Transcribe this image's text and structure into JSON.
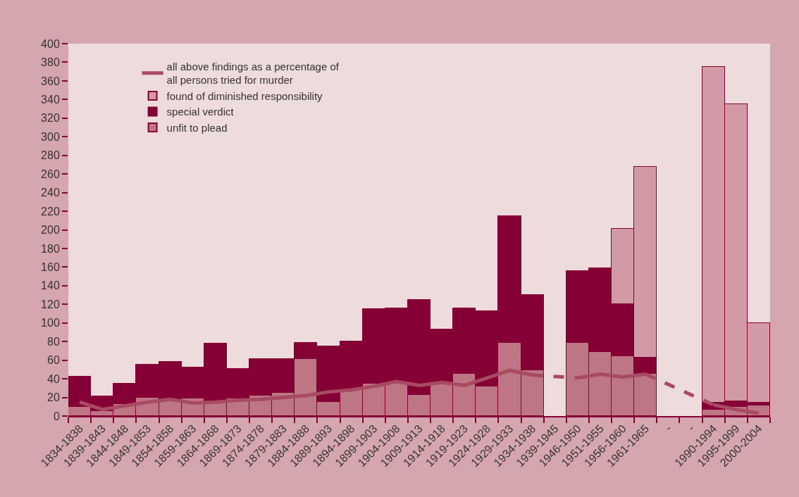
{
  "chart_data": {
    "type": "bar",
    "stacked": true,
    "legend": "top left",
    "grid": false,
    "categories": [
      "1834-1838",
      "1839-1843",
      "1844-1848",
      "1849-1853",
      "1854-1858",
      "1859-1863",
      "1864-1868",
      "1869-1873",
      "1874-1878",
      "1879-1883",
      "1884-1888",
      "1889-1893",
      "1894-1898",
      "1899-1903",
      "1904-1908",
      "1909-1913",
      "1914-1918",
      "1919-1923",
      "1924-1928",
      "1929-1933",
      "1934-1938",
      "1939-1945",
      "1946-1950",
      "1951-1955",
      "1956-1960",
      "1961-1965",
      "-",
      "-",
      "1990-1994",
      "1995-1999",
      "2000-2004"
    ],
    "ylim": [
      0,
      400
    ],
    "yticks": [
      0,
      20,
      40,
      60,
      80,
      100,
      120,
      140,
      160,
      180,
      200,
      220,
      240,
      260,
      280,
      300,
      320,
      340,
      360,
      380,
      400
    ],
    "series": [
      {
        "name": "unfit to plead",
        "color": "#be7684",
        "values": [
          10,
          5,
          13,
          20,
          18,
          19,
          15,
          19,
          22,
          25,
          61,
          15,
          28,
          35,
          36,
          23,
          35,
          45,
          32,
          79,
          49,
          null,
          79,
          69,
          64,
          45,
          null,
          null,
          7,
          10,
          11
        ]
      },
      {
        "name": "special verdict",
        "color": "#850035",
        "values": [
          32,
          16,
          22,
          35,
          40,
          33,
          63,
          32,
          39,
          36,
          18,
          60,
          52,
          80,
          80,
          102,
          58,
          71,
          81,
          136,
          81,
          null,
          77,
          90,
          56,
          18,
          null,
          null,
          7,
          6,
          3
        ]
      },
      {
        "name": "found of diminished responsibility",
        "color": "#d19aa4",
        "values": [
          null,
          null,
          null,
          null,
          null,
          null,
          null,
          null,
          null,
          null,
          null,
          null,
          null,
          null,
          null,
          null,
          null,
          null,
          null,
          null,
          null,
          null,
          null,
          null,
          81,
          205,
          null,
          null,
          361,
          319,
          86
        ]
      },
      {
        "name": "all above findings as a percentage of all persons tried for murder",
        "type": "line",
        "line_style": "solid",
        "color": "#a84a62",
        "values": [
          15,
          7,
          11,
          15,
          18,
          14,
          15,
          17,
          18,
          20,
          22,
          26,
          28,
          32,
          37,
          33,
          36,
          33,
          41,
          49,
          44,
          null,
          41,
          45,
          42,
          45,
          null,
          null,
          12,
          7,
          3
        ]
      }
    ]
  }
}
